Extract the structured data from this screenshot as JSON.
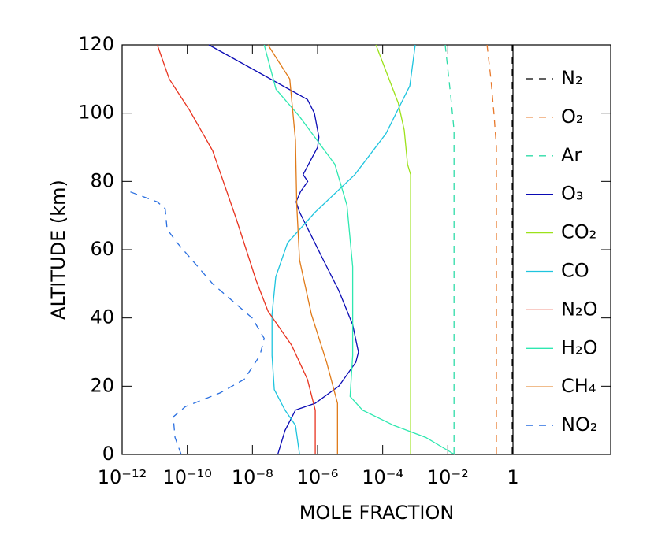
{
  "chart_data": {
    "type": "line",
    "x_label": "MOLE FRACTION",
    "y_label": "ALTITUDE (km)",
    "xlog": true,
    "xlim": [
      1e-12,
      1000
    ],
    "ylim": [
      0,
      120
    ],
    "xticks": [
      {
        "value": 1e-12,
        "label": "10⁻¹²"
      },
      {
        "value": 1e-10,
        "label": "10⁻¹⁰"
      },
      {
        "value": 1e-08,
        "label": "10⁻⁸"
      },
      {
        "value": 1e-06,
        "label": "10⁻⁶"
      },
      {
        "value": 0.0001,
        "label": "10⁻⁴"
      },
      {
        "value": 0.01,
        "label": "10⁻²"
      },
      1
    ],
    "yticks": [
      0,
      20,
      40,
      60,
      80,
      100,
      120
    ],
    "series": [
      {
        "name": "N₂",
        "color": "#000000",
        "dash": true,
        "values": [
          0.95,
          0.95
        ],
        "altitudes": [
          0,
          120
        ]
      },
      {
        "name": "O₂",
        "color": "#e8782a",
        "dash": true,
        "values": [
          0.31,
          0.31,
          0.26,
          0.21,
          0.16
        ],
        "altitudes": [
          0,
          90,
          100,
          110,
          120
        ]
      },
      {
        "name": "Ar",
        "color": "#2fdca8",
        "dash": true,
        "values": [
          0.0155,
          0.0155,
          0.0123,
          0.0083
        ],
        "altitudes": [
          0,
          95,
          105,
          120
        ]
      },
      {
        "name": "O₃",
        "color": "#0a0ab4",
        "dash": false,
        "values": [
          6e-08,
          1e-07,
          2.1e-07,
          8.5e-07,
          4.5e-06,
          1.5e-05,
          1.8e-05,
          1.2e-05,
          4.5e-06,
          1.5e-06,
          6.5e-07,
          2.8e-07,
          2.2e-07,
          3e-07,
          5e-07,
          3.6e-07,
          6e-07,
          1e-06,
          1.1e-06,
          8e-07,
          4.9e-07,
          4.6e-10
        ],
        "altitudes": [
          0,
          7,
          13,
          15,
          20,
          27,
          30,
          38,
          48,
          57,
          64,
          71,
          74,
          77,
          80,
          82,
          86,
          90,
          93,
          100,
          104,
          120
        ]
      },
      {
        "name": "CO₂",
        "color": "#9ce21a",
        "dash": false,
        "values": [
          0.00072,
          0.00072,
          0.00058,
          0.00046,
          0.0003,
          0.00013,
          6.2e-05
        ],
        "altitudes": [
          0,
          82,
          85,
          95,
          103,
          112,
          120
        ]
      },
      {
        "name": "CO",
        "color": "#1ec4de",
        "dash": false,
        "values": [
          2.8e-07,
          2.1e-07,
          1e-07,
          4.7e-08,
          4e-08,
          4e-08,
          5.2e-08,
          1.2e-07,
          8.5e-07,
          1.4e-05,
          0.000126,
          0.00068,
          0.001
        ],
        "altitudes": [
          0,
          8.5,
          13,
          19,
          29,
          41,
          52,
          62,
          71,
          82,
          94,
          108,
          120
        ]
      },
      {
        "name": "N₂O",
        "color": "#e8331f",
        "dash": false,
        "values": [
          8.5e-07,
          8.5e-07,
          4.9e-07,
          1.6e-07,
          3e-08,
          1.3e-08,
          3.2e-09,
          6e-10,
          1.15e-10,
          2.8e-11,
          1.2e-11
        ],
        "altitudes": [
          0,
          13,
          22,
          32,
          42,
          51,
          69,
          89,
          101,
          110,
          120
        ]
      },
      {
        "name": "H₂O",
        "color": "#2ee8b0",
        "dash": false,
        "values": [
          0.016,
          0.0021,
          0.00022,
          2.4e-05,
          1e-05,
          1.2e-05,
          1.2e-05,
          8e-06,
          3.4e-06,
          2.8e-07,
          5.3e-08,
          2.3e-08
        ],
        "altitudes": [
          0,
          5,
          8.5,
          13,
          17,
          29,
          55,
          73,
          85,
          99,
          107,
          120
        ]
      },
      {
        "name": "CH₄",
        "color": "#e07a18",
        "dash": false,
        "values": [
          4.1e-06,
          4.1e-06,
          1.9e-06,
          6.5e-07,
          2.8e-07,
          2.3e-07,
          2.1e-07,
          1.4e-07,
          3e-08
        ],
        "altitudes": [
          0,
          15,
          27,
          41,
          57,
          73,
          92,
          110,
          120
        ]
      },
      {
        "name": "NO₂",
        "color": "#2a6fe0",
        "dash": true,
        "values": [
          6.5e-11,
          4.2e-11,
          3.7e-11,
          8.7e-11,
          1e-09,
          5.6e-09,
          1.7e-08,
          2.3e-08,
          9.8e-09,
          6e-10,
          4.9e-11,
          2.4e-11,
          2.1e-11,
          1.2e-11,
          1.7e-12
        ],
        "altitudes": [
          0,
          5,
          11,
          14,
          18,
          22,
          29,
          34,
          40,
          50,
          62,
          66,
          72,
          74,
          77
        ]
      }
    ]
  }
}
